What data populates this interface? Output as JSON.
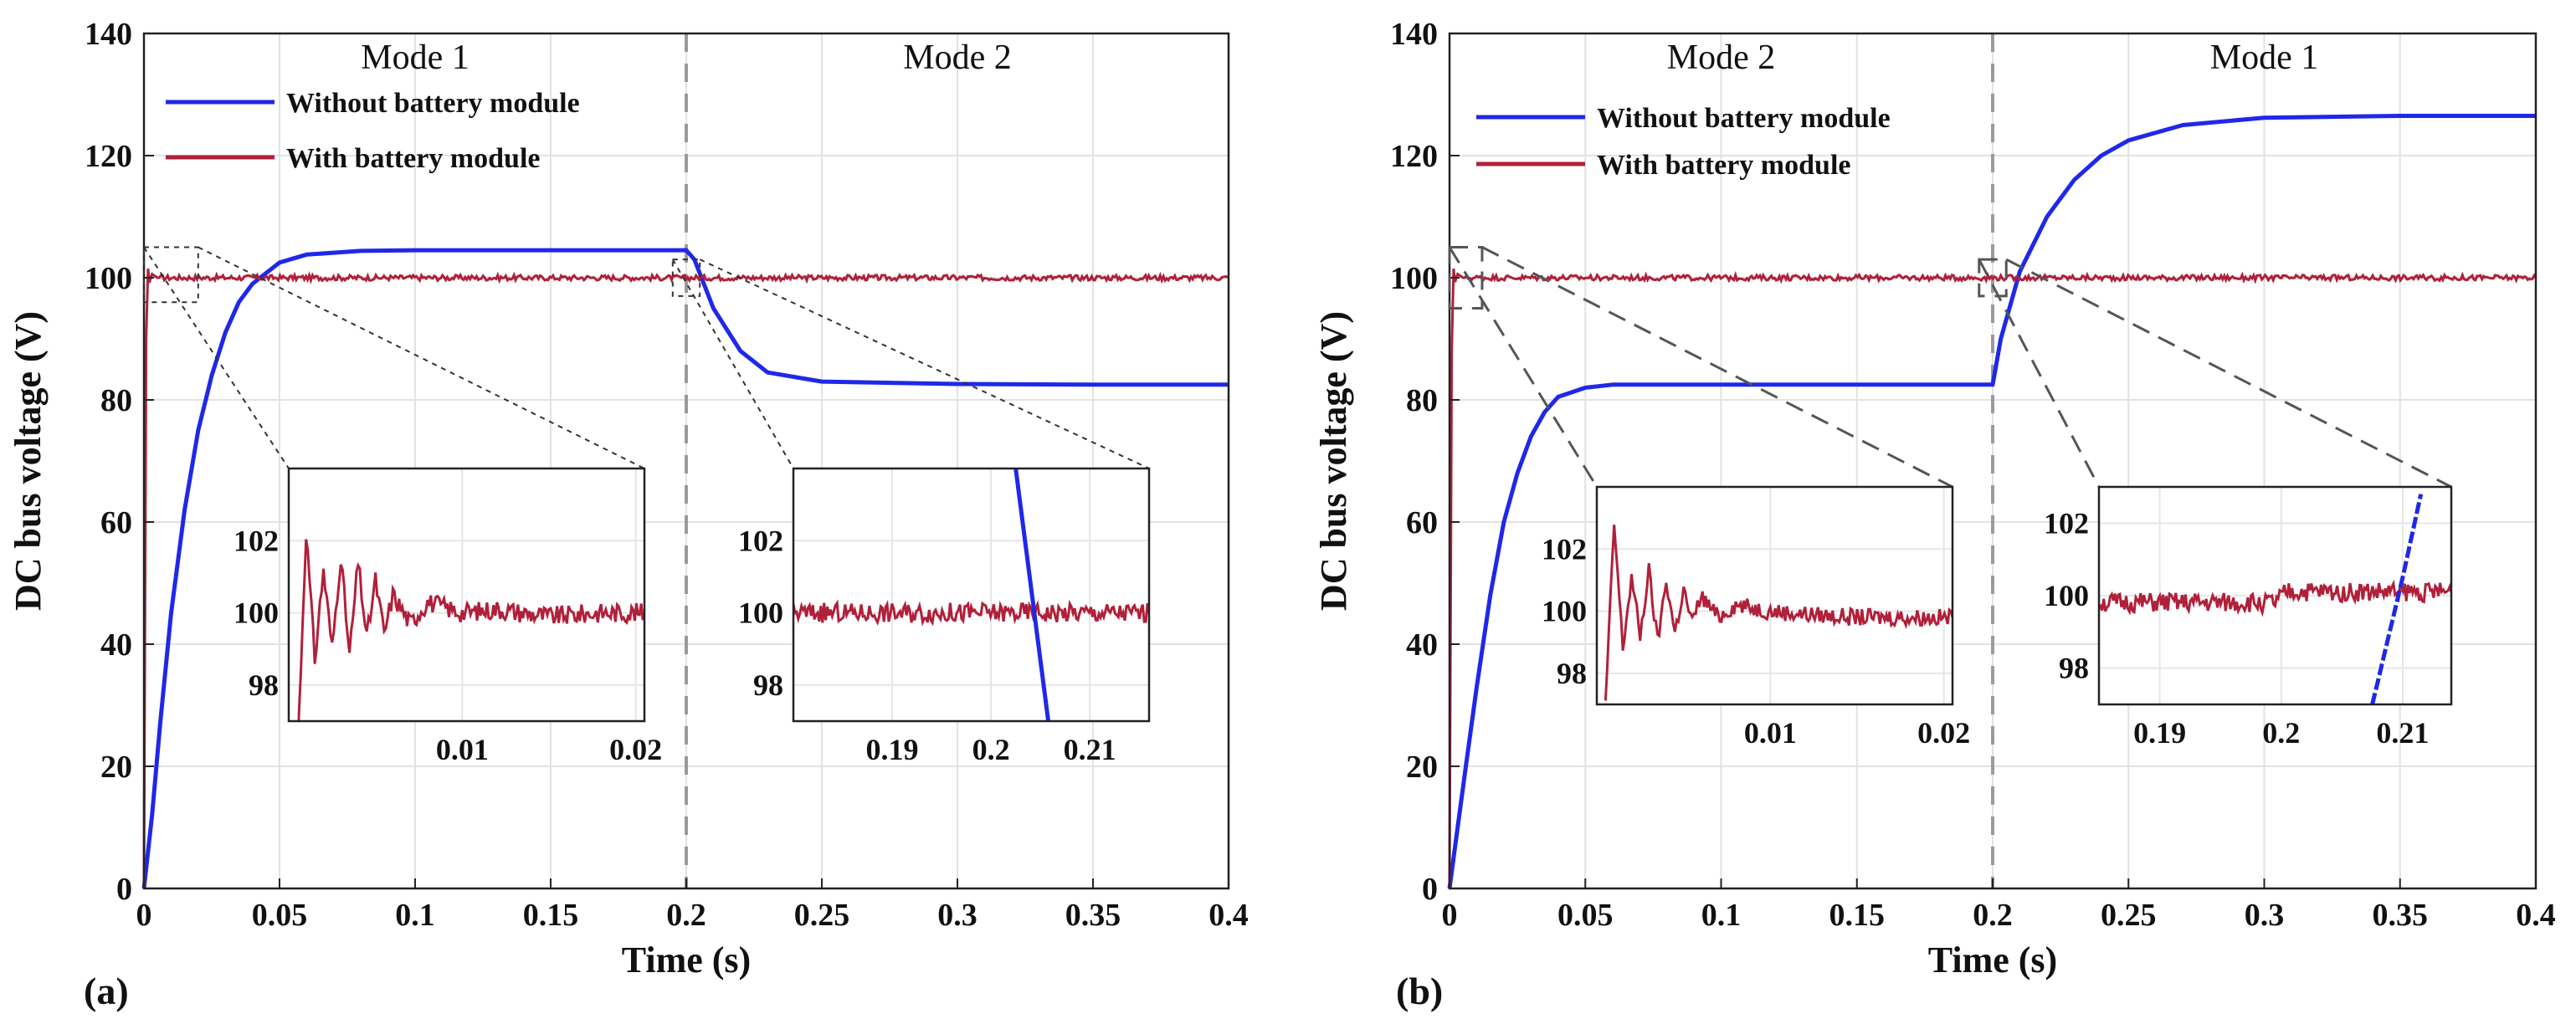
{
  "chart_data": [
    {
      "panel_label": "(a)",
      "type": "line",
      "xlabel": "Time (s)",
      "ylabel": "DC bus voltage (V)",
      "xlim": [
        0,
        0.4
      ],
      "ylim": [
        0,
        140
      ],
      "xticks": [
        "0",
        "0.05",
        "0.1",
        "0.15",
        "0.2",
        "0.25",
        "0.3",
        "0.35",
        "0.4"
      ],
      "yticks": [
        "0",
        "20",
        "40",
        "60",
        "80",
        "100",
        "120",
        "140"
      ],
      "grid": true,
      "mode_divider_x": 0.2,
      "mode_labels": [
        {
          "text": "Mode 1",
          "x": 0.1
        },
        {
          "text": "Mode 2",
          "x": 0.3
        }
      ],
      "series": [
        {
          "name": "Without battery module",
          "color": "#1f28e8",
          "x": [
            0,
            0.003,
            0.006,
            0.01,
            0.015,
            0.02,
            0.025,
            0.03,
            0.035,
            0.04,
            0.05,
            0.06,
            0.08,
            0.1,
            0.15,
            0.2,
            0.203,
            0.21,
            0.22,
            0.23,
            0.25,
            0.3,
            0.35,
            0.4
          ],
          "y": [
            0,
            12,
            27,
            45,
            62,
            75,
            84,
            91,
            96,
            99,
            102.5,
            103.8,
            104.4,
            104.5,
            104.5,
            104.5,
            103,
            95,
            88,
            84.5,
            83,
            82.6,
            82.5,
            82.5
          ]
        },
        {
          "name": "With battery module",
          "color": "#b0203a",
          "x": [
            0,
            0.0008,
            0.0015,
            0.002,
            0.003,
            0.005,
            0.01,
            0.2,
            0.4
          ],
          "y": [
            0,
            90,
            101.5,
            99.2,
            100.6,
            100,
            100,
            100,
            100
          ]
        }
      ],
      "legend_position": "top-left",
      "insets": [
        {
          "xlim": [
            0,
            0.0205
          ],
          "ylim": [
            97,
            104
          ],
          "xticks": [
            "0.01",
            "0.02"
          ],
          "yticks": [
            "98",
            "100",
            "102"
          ],
          "source_x": [
            0,
            0.02
          ],
          "source_y": [
            96,
            105
          ],
          "series": [
            {
              "name": "With battery module",
              "color": "#b0203a",
              "x": [
                0.0005,
                0.001,
                0.0015,
                0.002,
                0.0025,
                0.003,
                0.0035,
                0.004,
                0.0045,
                0.005,
                0.0055,
                0.006,
                0.007,
                0.008,
                0.01,
                0.012,
                0.015,
                0.018,
                0.0205
              ],
              "y": [
                96,
                102.3,
                98.7,
                101.2,
                99,
                101.6,
                98.8,
                101.4,
                99.3,
                100.9,
                99.4,
                100.5,
                99.7,
                100.3,
                100,
                100.1,
                99.9,
                100,
                100
              ]
            }
          ]
        },
        {
          "xlim": [
            0.18,
            0.216
          ],
          "ylim": [
            97,
            104
          ],
          "xticks": [
            "0.19",
            "0.2",
            "0.21"
          ],
          "yticks": [
            "98",
            "100",
            "102"
          ],
          "source_x": [
            0.195,
            0.205
          ],
          "source_y": [
            97,
            103
          ],
          "series": [
            {
              "name": "With battery module",
              "color": "#b0203a",
              "x": [
                0.18,
                0.216
              ],
              "y": [
                100,
                100
              ]
            },
            {
              "name": "Without battery module",
              "color": "#1f28e8",
              "x": [
                0.2025,
                0.2058
              ],
              "y": [
                104,
                97
              ]
            }
          ]
        }
      ]
    },
    {
      "panel_label": "(b)",
      "type": "line",
      "xlabel": "Time (s)",
      "ylabel": "DC bus voltage (V)",
      "xlim": [
        0,
        0.4
      ],
      "ylim": [
        0,
        140
      ],
      "xticks": [
        "0",
        "0.05",
        "0.1",
        "0.15",
        "0.2",
        "0.25",
        "0.3",
        "0.35",
        "0.4"
      ],
      "yticks": [
        "0",
        "20",
        "40",
        "60",
        "80",
        "100",
        "120",
        "140"
      ],
      "grid": true,
      "mode_divider_x": 0.2,
      "mode_labels": [
        {
          "text": "Mode 2",
          "x": 0.1
        },
        {
          "text": "Mode 1",
          "x": 0.3
        }
      ],
      "series": [
        {
          "name": "Without battery module",
          "color": "#1f28e8",
          "x": [
            0,
            0.003,
            0.006,
            0.01,
            0.015,
            0.02,
            0.025,
            0.03,
            0.035,
            0.04,
            0.05,
            0.06,
            0.08,
            0.1,
            0.15,
            0.2,
            0.203,
            0.21,
            0.22,
            0.23,
            0.24,
            0.25,
            0.27,
            0.3,
            0.35,
            0.4
          ],
          "y": [
            0,
            10,
            20,
            33,
            48,
            60,
            68,
            74,
            78,
            80.5,
            82,
            82.5,
            82.5,
            82.5,
            82.5,
            82.5,
            90,
            101,
            110,
            116,
            120,
            122.5,
            125,
            126.2,
            126.5,
            126.5
          ]
        },
        {
          "name": "With battery module",
          "color": "#b0203a",
          "x": [
            0,
            0.0008,
            0.0015,
            0.002,
            0.003,
            0.005,
            0.01,
            0.2,
            0.4
          ],
          "y": [
            0,
            88,
            101.5,
            99.3,
            100.6,
            100,
            100,
            100,
            100
          ]
        }
      ],
      "legend_position": "top-left",
      "insets": [
        {
          "xlim": [
            0,
            0.0205
          ],
          "ylim": [
            97,
            104
          ],
          "xticks": [
            "0.01",
            "0.02"
          ],
          "yticks": [
            "98",
            "100",
            "102"
          ],
          "source_x": [
            0,
            0.012
          ],
          "source_y": [
            95,
            105
          ],
          "series": [
            {
              "name": "With battery module",
              "color": "#b0203a",
              "x": [
                0.0005,
                0.001,
                0.0015,
                0.002,
                0.0025,
                0.003,
                0.0035,
                0.004,
                0.0045,
                0.005,
                0.0055,
                0.006,
                0.007,
                0.008,
                0.01,
                0.012,
                0.015,
                0.018,
                0.0205
              ],
              "y": [
                97,
                102.8,
                98.8,
                101.1,
                99.2,
                101.3,
                99,
                101,
                99.3,
                100.7,
                99.6,
                100.5,
                99.8,
                100.2,
                100,
                99.9,
                99.8,
                99.8,
                99.8
              ]
            }
          ]
        },
        {
          "xlim": [
            0.185,
            0.214
          ],
          "ylim": [
            97,
            103
          ],
          "xticks": [
            "0.19",
            "0.2",
            "0.21"
          ],
          "yticks": [
            "98",
            "100",
            "102"
          ],
          "source_x": [
            0.195,
            0.205
          ],
          "source_y": [
            97,
            103
          ],
          "series": [
            {
              "name": "With battery module",
              "color": "#b0203a",
              "x": [
                0.185,
                0.1995,
                0.2005,
                0.214
              ],
              "y": [
                99.8,
                99.8,
                100.1,
                100.1
              ]
            },
            {
              "name": "Without battery module",
              "color": "#1f28e8",
              "x": [
                0.2075,
                0.21,
                0.2115
              ],
              "y": [
                97,
                100.5,
                102.8
              ]
            }
          ]
        }
      ]
    }
  ]
}
